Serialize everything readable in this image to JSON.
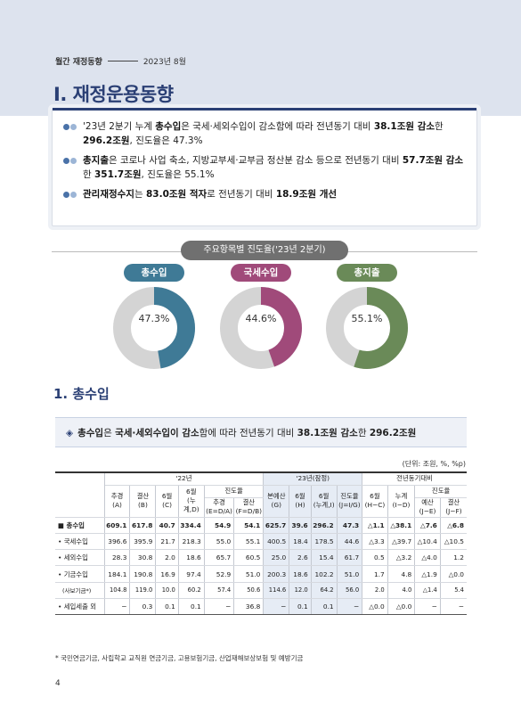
{
  "header": {
    "publication": "월간 재정동향",
    "issue": "2023년 8월"
  },
  "chapter_title": "Ⅰ. 재정운용동향",
  "summary": [
    {
      "segments": [
        {
          "t": "'23년 2분기 누계 ",
          "b": false
        },
        {
          "t": "총수입",
          "b": true
        },
        {
          "t": "은 국세·세외수입이 감소함에 따라 전년동기 대비 ",
          "b": false
        },
        {
          "t": "38.1조원 감소",
          "b": true
        },
        {
          "t": "한 ",
          "b": false
        },
        {
          "t": "296.2조원",
          "b": true
        },
        {
          "t": ", 진도율은 47.3%",
          "b": false
        }
      ]
    },
    {
      "segments": [
        {
          "t": "총지출",
          "b": true
        },
        {
          "t": "은 코로나 사업 축소, 지방교부세·교부금 정산분 감소 등으로 전년동기 대비 ",
          "b": false
        },
        {
          "t": "57.7조원 감소",
          "b": true
        },
        {
          "t": "한 ",
          "b": false
        },
        {
          "t": "351.7조원",
          "b": true
        },
        {
          "t": ", 진도율은 55.1%",
          "b": false
        }
      ]
    },
    {
      "segments": [
        {
          "t": "관리재정수지",
          "b": true
        },
        {
          "t": "는 ",
          "b": false
        },
        {
          "t": "83.0조원 적자",
          "b": true
        },
        {
          "t": "로 전년동기 대비 ",
          "b": false
        },
        {
          "t": "18.9조원 개선",
          "b": true
        }
      ]
    }
  ],
  "progress_section_title": "주요항목별 진도율('23년 2분기)",
  "donuts": [
    {
      "label": "총수입",
      "value_text": "47.3%",
      "fraction": 0.473,
      "color": "#3f7a96"
    },
    {
      "label": "국세수입",
      "value_text": "44.6%",
      "fraction": 0.446,
      "color": "#a04a7a"
    },
    {
      "label": "총지출",
      "value_text": "55.1%",
      "fraction": 0.551,
      "color": "#6a8a58"
    }
  ],
  "donut_track_color": "#d4d4d4",
  "section_title": "1. 총수입",
  "highlight": {
    "symbol": "◈",
    "segments": [
      {
        "t": "총수입",
        "b": true
      },
      {
        "t": "은 ",
        "b": false
      },
      {
        "t": "국세·세외수입이 감소",
        "b": true
      },
      {
        "t": "함에 따라 전년동기 대비 ",
        "b": false
      },
      {
        "t": "38.1조원 감소",
        "b": true
      },
      {
        "t": "한 ",
        "b": false
      },
      {
        "t": "296.2조원",
        "b": true
      }
    ]
  },
  "table": {
    "unit": "(단위: 조원, %, %p)",
    "group_headers": {
      "y22": "'22년",
      "y23": "'23년(잠정)",
      "yoy": "전년동기대비"
    },
    "progress_label": "진도율",
    "col_labels": {
      "c_a": "추경\n(A)",
      "c_b": "결산\n(B)",
      "c_c": "6월\n(C)",
      "c_d": "6월\n(누계,D)",
      "c_e": "추경\n(E=D/A)",
      "c_f": "결산\n(F=D/B)",
      "c_g": "본예산\n(G)",
      "c_h": "6월\n(H)",
      "c_i": "6월\n(누계,I)",
      "c_j": "진도율\n(J=I/G)",
      "c_hc": "6월\n(H−C)",
      "c_id": "누계\n(I−D)",
      "c_je": "예산\n(J−E)",
      "c_jf": "결산\n(J−F)"
    },
    "rows": [
      {
        "label": "■ 총수입",
        "total": true,
        "cells": [
          "609.1",
          "617.8",
          "40.7",
          "334.4",
          "54.9",
          "54.1",
          "625.7",
          "39.6",
          "296.2",
          "47.3",
          "△1.1",
          "△38.1",
          "△7.6",
          "△6.8"
        ]
      },
      {
        "label": "• 국세수입",
        "total": false,
        "cells": [
          "396.6",
          "395.9",
          "21.7",
          "218.3",
          "55.0",
          "55.1",
          "400.5",
          "18.4",
          "178.5",
          "44.6",
          "△3.3",
          "△39.7",
          "△10.4",
          "△10.5"
        ]
      },
      {
        "label": "• 세외수입",
        "total": false,
        "cells": [
          "28.3",
          "30.8",
          "2.0",
          "18.6",
          "65.7",
          "60.5",
          "25.0",
          "2.6",
          "15.4",
          "61.7",
          "0.5",
          "△3.2",
          "△4.0",
          "1.2"
        ]
      },
      {
        "label": "• 기금수입",
        "total": false,
        "cells": [
          "184.1",
          "190.8",
          "16.9",
          "97.4",
          "52.9",
          "51.0",
          "200.3",
          "18.6",
          "102.2",
          "51.0",
          "1.7",
          "4.8",
          "△1.9",
          "△0.0"
        ]
      },
      {
        "label": "(사보기금*)",
        "total": false,
        "small": true,
        "cells": [
          "104.8",
          "119.0",
          "10.0",
          "60.2",
          "57.4",
          "50.6",
          "114.6",
          "12.0",
          "64.2",
          "56.0",
          "2.0",
          "4.0",
          "△1.4",
          "5.4"
        ]
      },
      {
        "label": "• 세입세출 외",
        "total": false,
        "cells": [
          "−",
          "0.3",
          "0.1",
          "0.1",
          "−",
          "36.8",
          "−",
          "0.1",
          "0.1",
          "−",
          "△0.0",
          "△0.0",
          "−",
          "−"
        ]
      }
    ],
    "footnote": "* 국민연금기금, 사립학교 교직원 연금기금, 고용보험기금, 산업재해보상보험 및 예방기금"
  },
  "page_number": "4"
}
